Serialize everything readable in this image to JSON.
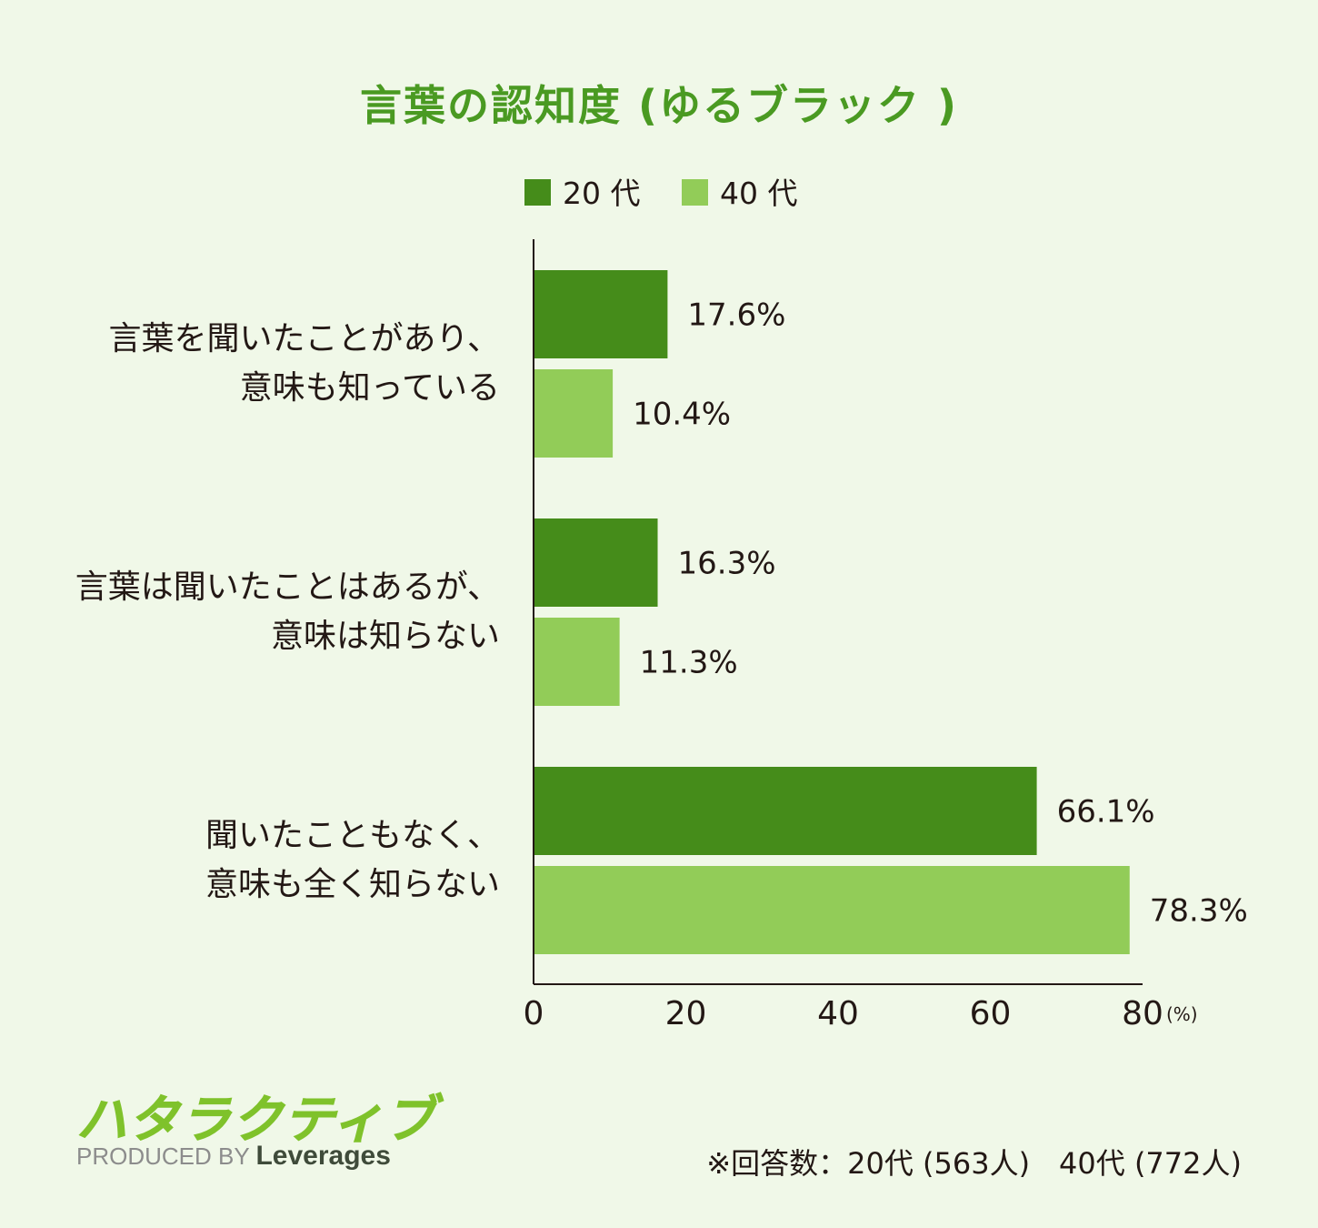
{
  "chart_data": {
    "type": "bar",
    "orientation": "horizontal",
    "title": "言葉の認知度 (ゆるブラック )",
    "categories": [
      [
        "言葉を聞いたことがあり、",
        "意味も知っている"
      ],
      [
        "言葉は聞いたことはあるが、",
        "意味は知らない"
      ],
      [
        "聞いたこともなく、",
        "意味も全く知らない"
      ]
    ],
    "series": [
      {
        "name": "20 代",
        "color": "#458c1a",
        "values": [
          17.6,
          16.3,
          66.1
        ],
        "labels": [
          "17.6%",
          "16.3%",
          "66.1%"
        ]
      },
      {
        "name": "40 代",
        "color": "#92cc58",
        "values": [
          10.4,
          11.3,
          78.3
        ],
        "labels": [
          "10.4%",
          "11.3%",
          "78.3%"
        ]
      }
    ],
    "xlim": [
      0,
      80
    ],
    "xticks": [
      "0",
      "20",
      "40",
      "60",
      "80"
    ],
    "x_unit": "(%)",
    "legend_position": "top",
    "grid": false
  },
  "branding": {
    "logo_text": "ハタラクティブ",
    "produced_by": "PRODUCED BY",
    "company": "Leverages"
  },
  "footnote": "※回答数：20代 (563人)　40代 (772人)"
}
